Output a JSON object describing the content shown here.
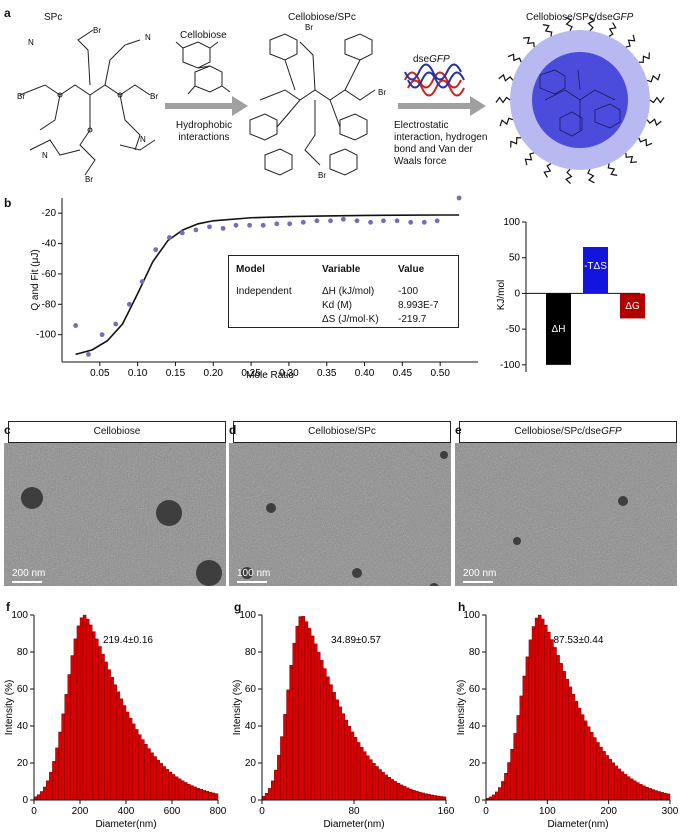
{
  "panel_a": {
    "label": "a",
    "spc_label": "SPc",
    "cellobiose_label": "Cellobiose",
    "arrow1_text": [
      "Hydrophobic",
      "interactions"
    ],
    "complex1_label": "Cellobiose/SPc",
    "dsegfp_label_prefix": "dse",
    "dsegfp_label_italic": "GFP",
    "arrow2_text": [
      "Electrostatic",
      "interaction, hydrogen",
      "bond and Van der",
      "Waals force"
    ],
    "complex2_prefix": "Cellobiose/SPc/dse",
    "complex2_italic": "GFP",
    "br_label": "Br"
  },
  "panel_b": {
    "label": "b",
    "itc": {
      "ylabel": "Q and Fit (μJ)",
      "xlabel": "Mole Ratio",
      "table": {
        "headers": [
          "Model",
          "Variable",
          "Value"
        ],
        "rows": [
          [
            "Independent",
            "ΔH (kJ/mol)",
            "-100"
          ],
          [
            "",
            "Kd (M)",
            "8.993E-7"
          ],
          [
            "",
            "ΔS (J/mol·K)",
            "-219.7"
          ]
        ]
      }
    },
    "energy": {
      "ylabel": "KJ/mol"
    }
  },
  "tem": [
    {
      "label": "c",
      "title": "Cellobiose",
      "scale": "200 nm"
    },
    {
      "label": "d",
      "title": "Cellobiose/SPc",
      "scale": "100 nm"
    },
    {
      "label": "e",
      "title_prefix": "Cellobiose/SPc/dse",
      "title_italic": "GFP",
      "scale": "200 nm"
    }
  ],
  "chart_data": [
    {
      "type": "scatter",
      "title": "",
      "xlabel": "Mole Ratio",
      "ylabel": "Q and Fit (μJ)",
      "xlim": [
        0,
        0.55
      ],
      "ylim": [
        -118,
        -10
      ],
      "xticks": [
        0.05,
        0.1,
        0.15,
        0.2,
        0.25,
        0.3,
        0.35,
        0.4,
        0.45,
        0.5
      ],
      "xtick_labels": [
        "0.05",
        "0.10",
        "0.15",
        "0.20",
        "0.25",
        "0.30",
        "0.35",
        "0.40",
        "0.45",
        "0.50"
      ],
      "yticks": [
        -20,
        -40,
        -60,
        -80,
        -100
      ],
      "series": [
        {
          "kind": "points",
          "x": [
            0.018,
            0.035,
            0.053,
            0.071,
            0.089,
            0.106,
            0.124,
            0.142,
            0.159,
            0.177,
            0.195,
            0.213,
            0.23,
            0.248,
            0.266,
            0.284,
            0.301,
            0.319,
            0.337,
            0.355,
            0.372,
            0.39,
            0.408,
            0.425,
            0.443,
            0.461,
            0.479,
            0.496,
            0.525
          ],
          "y": [
            -94,
            -113,
            -100,
            -93,
            -80,
            -65,
            -44,
            -36,
            -33,
            -31,
            -29,
            -30,
            -28,
            -28,
            -28,
            -27,
            -27,
            -26,
            -25,
            -25,
            -24,
            -25,
            -26,
            -25,
            -25,
            -26,
            -26,
            -25,
            -10
          ]
        },
        {
          "kind": "fit",
          "x": [
            0.018,
            0.04,
            0.06,
            0.08,
            0.1,
            0.12,
            0.14,
            0.16,
            0.18,
            0.2,
            0.25,
            0.3,
            0.35,
            0.4,
            0.45,
            0.5,
            0.525
          ],
          "y": [
            -113,
            -110,
            -104,
            -93,
            -73,
            -52,
            -38,
            -31,
            -27,
            -25,
            -23,
            -22.2,
            -21.8,
            -21.5,
            -21.3,
            -21.2,
            -21.2
          ]
        }
      ]
    },
    {
      "type": "bar",
      "title": "",
      "ylabel": "KJ/mol",
      "ylim": [
        -110,
        100
      ],
      "yticks": [
        100,
        50,
        0,
        -50,
        -100
      ],
      "categories": [
        "ΔH",
        "-TΔS",
        "ΔG"
      ],
      "values": [
        -100,
        65,
        -35
      ],
      "colors": [
        "#000000",
        "#1414e0",
        "#b00000"
      ]
    },
    {
      "type": "bar",
      "label": "f",
      "annotation": "219.4±0.16",
      "xlabel": "Diameter(nm)",
      "ylabel": "Intensity (%)",
      "xlim": [
        0,
        800
      ],
      "ylim": [
        0,
        100
      ],
      "xticks": [
        0,
        200,
        400,
        600,
        800
      ],
      "yticks": [
        0,
        20,
        40,
        60,
        80,
        100
      ],
      "distribution": {
        "mode": 219.4,
        "xmin": 0,
        "xmax": 800,
        "bins": 60,
        "spread_left": 75,
        "spread_right": 160
      },
      "color": "#dd0000"
    },
    {
      "type": "bar",
      "label": "g",
      "annotation": "34.89±0.57",
      "xlabel": "Diameter(nm)",
      "ylabel": "Intensity (%)",
      "xlim": [
        0,
        160
      ],
      "ylim": [
        0,
        100
      ],
      "xticks": [
        0,
        80,
        160
      ],
      "yticks": [
        0,
        20,
        40,
        60,
        80,
        100
      ],
      "distribution": {
        "mode": 34.89,
        "xmin": 0,
        "xmax": 160,
        "bins": 60,
        "spread_left": 12,
        "spread_right": 30
      },
      "color": "#dd0000"
    },
    {
      "type": "bar",
      "label": "h",
      "annotation": "87.53±0.44",
      "xlabel": "Diameter(nm)",
      "ylabel": "Intensity (%)",
      "xlim": [
        0,
        300
      ],
      "ylim": [
        0,
        100
      ],
      "xticks": [
        0,
        100,
        200,
        300
      ],
      "yticks": [
        0,
        20,
        40,
        60,
        80,
        100
      ],
      "distribution": {
        "mode": 87.53,
        "xmin": 0,
        "xmax": 300,
        "bins": 60,
        "spread_left": 28,
        "spread_right": 58
      },
      "color": "#dd0000"
    }
  ],
  "colors": {
    "arrow": "#a0a0a0",
    "nanoparticle_outer": "#b9b9f2",
    "nanoparticle_inner": "#3838d8",
    "dna_red": "#cc2222",
    "dna_blue": "#2233aa",
    "itc_point": "#7a6ab8"
  }
}
